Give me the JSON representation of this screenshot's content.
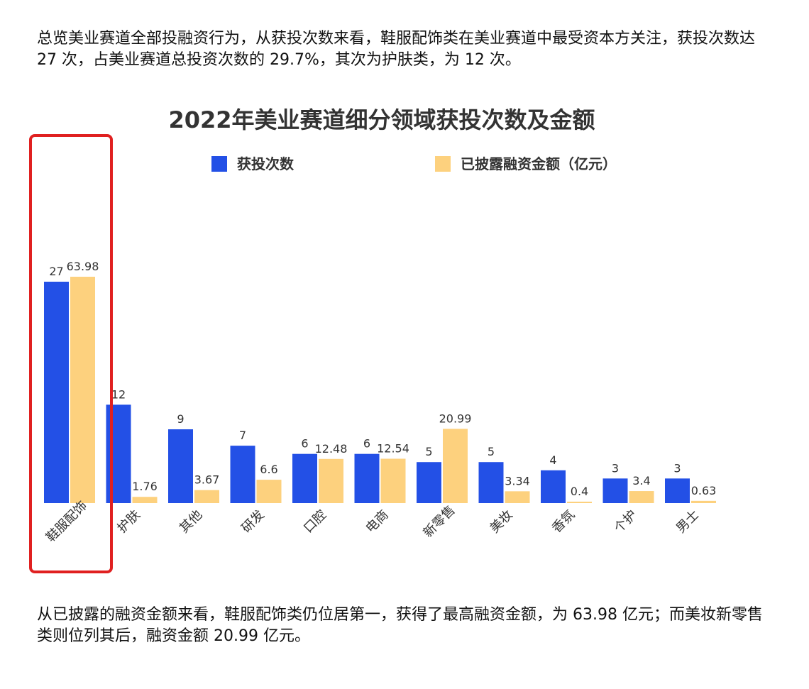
{
  "article": {
    "paragraph_1": "总览美业赛道全部投融资行为，从获投次数来看，鞋服配饰类在美业赛道中最受资本方关注，获投次数达 27 次，占美业赛道总投资次数的 29.7%，其次为护肤类，为 12 次。",
    "paragraph_2": "从已披露的融资金额来看，鞋服配饰类仍位居第一，获得了最高融资金额，为 63.98 亿元；而美妆新零售类则位列其后，融资金额 20.99 亿元。"
  },
  "chart_data": {
    "type": "bar",
    "title": "2022年美业赛道细分领域获投次数及金额",
    "categories": [
      "鞋服配饰",
      "护肤",
      "其他",
      "研发",
      "口腔",
      "电商",
      "新零售",
      "美妆",
      "香氛",
      "个护",
      "男士"
    ],
    "series": [
      {
        "name": "获投次数",
        "color": "#2350e6",
        "values": [
          27,
          12,
          9,
          7,
          6,
          6,
          5,
          5,
          4,
          3,
          3
        ],
        "labels": [
          "27",
          "12",
          "9",
          "7",
          "6",
          "6",
          "5",
          "5",
          "4",
          "3",
          "3"
        ]
      },
      {
        "name": "已披露融资金额（亿元）",
        "color": "#fdd17e",
        "values": [
          63.98,
          1.76,
          3.67,
          6.6,
          12.48,
          12.54,
          20.99,
          3.34,
          0.4,
          3.4,
          0.63
        ],
        "labels": [
          "63.98",
          "1.76",
          "3.67",
          "6.6",
          "12.48",
          "12.54",
          "20.99",
          "3.34",
          "0.4",
          "3.4",
          "0.63"
        ]
      }
    ],
    "highlight": {
      "category": "鞋服配饰",
      "color": "#e02020"
    },
    "legend_position": "top",
    "grid": false
  }
}
